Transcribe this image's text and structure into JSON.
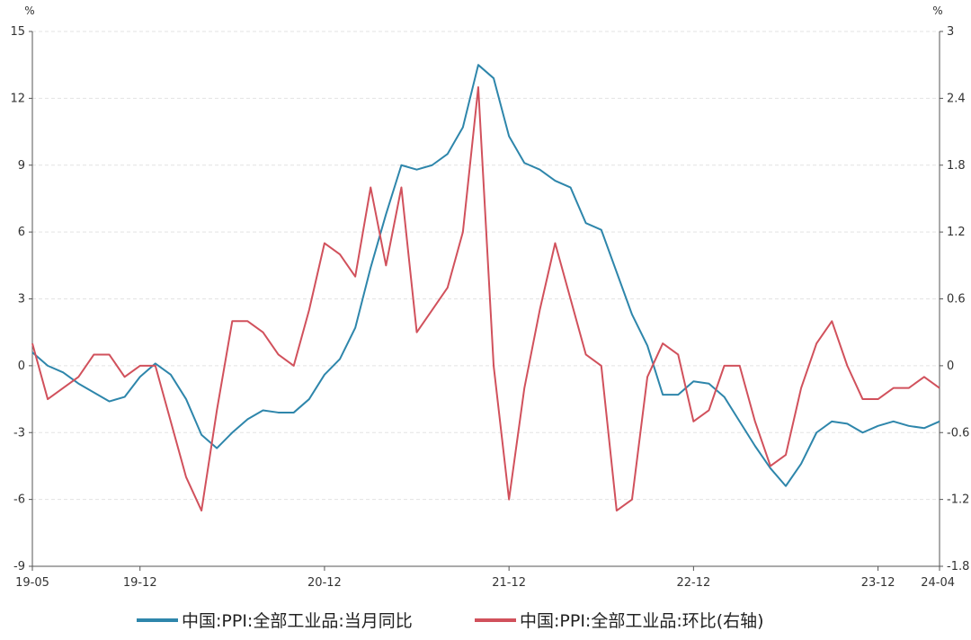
{
  "chart_data": {
    "type": "line",
    "x_categories": [
      "19-05",
      "19-06",
      "19-07",
      "19-08",
      "19-09",
      "19-10",
      "19-11",
      "19-12",
      "20-01",
      "20-02",
      "20-03",
      "20-04",
      "20-05",
      "20-06",
      "20-07",
      "20-08",
      "20-09",
      "20-10",
      "20-11",
      "20-12",
      "21-01",
      "21-02",
      "21-03",
      "21-04",
      "21-05",
      "21-06",
      "21-07",
      "21-08",
      "21-09",
      "21-10",
      "21-11",
      "21-12",
      "22-01",
      "22-02",
      "22-03",
      "22-04",
      "22-05",
      "22-06",
      "22-07",
      "22-08",
      "22-09",
      "22-10",
      "22-11",
      "22-12",
      "23-01",
      "23-02",
      "23-03",
      "23-04",
      "23-05",
      "23-06",
      "23-07",
      "23-08",
      "23-09",
      "23-10",
      "23-11",
      "23-12",
      "24-01",
      "24-02",
      "24-03",
      "24-04"
    ],
    "x_tick_labels": [
      "19-05",
      "19-12",
      "20-12",
      "21-12",
      "22-12",
      "23-12",
      "24-04"
    ],
    "left_axis": {
      "unit": "%",
      "min": -9,
      "max": 15,
      "ticks": [
        "15",
        "12",
        "9",
        "6",
        "3",
        "0",
        "-3",
        "-6",
        "-9"
      ]
    },
    "right_axis": {
      "unit": "%",
      "min": -1.8,
      "max": 3,
      "ticks": [
        "3",
        "2.4",
        "1.8",
        "1.2",
        "0.6",
        "0",
        "-0.6",
        "-1.2",
        "-1.8"
      ]
    },
    "grid": "horizontal dashed",
    "legend_position": "bottom",
    "series": [
      {
        "name": "中国:PPI:全部工业品:当月同比",
        "axis": "left",
        "color": "#2e86ab",
        "values": [
          0.6,
          0.0,
          -0.3,
          -0.8,
          -1.2,
          -1.6,
          -1.4,
          -0.5,
          0.1,
          -0.4,
          -1.5,
          -3.1,
          -3.7,
          -3.0,
          -2.4,
          -2.0,
          -2.1,
          -2.1,
          -1.5,
          -0.4,
          0.3,
          1.7,
          4.4,
          6.8,
          9.0,
          8.8,
          9.0,
          9.5,
          10.7,
          13.5,
          12.9,
          10.3,
          9.1,
          8.8,
          8.3,
          8.0,
          6.4,
          6.1,
          4.2,
          2.3,
          0.9,
          -1.3,
          -1.3,
          -0.7,
          -0.8,
          -1.4,
          -2.5,
          -3.6,
          -4.6,
          -5.4,
          -4.4,
          -3.0,
          -2.5,
          -2.6,
          -3.0,
          -2.7,
          -2.5,
          -2.7,
          -2.8,
          -2.5
        ]
      },
      {
        "name": "中国:PPI:全部工业品:环比(右轴)",
        "axis": "right",
        "color": "#d1515c",
        "values": [
          0.2,
          -0.3,
          -0.2,
          -0.1,
          0.1,
          0.1,
          -0.1,
          0.0,
          0.0,
          -0.5,
          -1.0,
          -1.3,
          -0.4,
          0.4,
          0.4,
          0.3,
          0.1,
          0.0,
          0.5,
          1.1,
          1.0,
          0.8,
          1.6,
          0.9,
          1.6,
          0.3,
          0.5,
          0.7,
          1.2,
          2.5,
          0.0,
          -1.2,
          -0.2,
          0.5,
          1.1,
          0.6,
          0.1,
          0.0,
          -1.3,
          -1.2,
          -0.1,
          0.2,
          0.1,
          -0.5,
          -0.4,
          0.0,
          0.0,
          -0.5,
          -0.9,
          -0.8,
          -0.2,
          0.2,
          0.4,
          0.0,
          -0.3,
          -0.3,
          -0.2,
          -0.2,
          -0.1,
          -0.2
        ]
      }
    ]
  }
}
